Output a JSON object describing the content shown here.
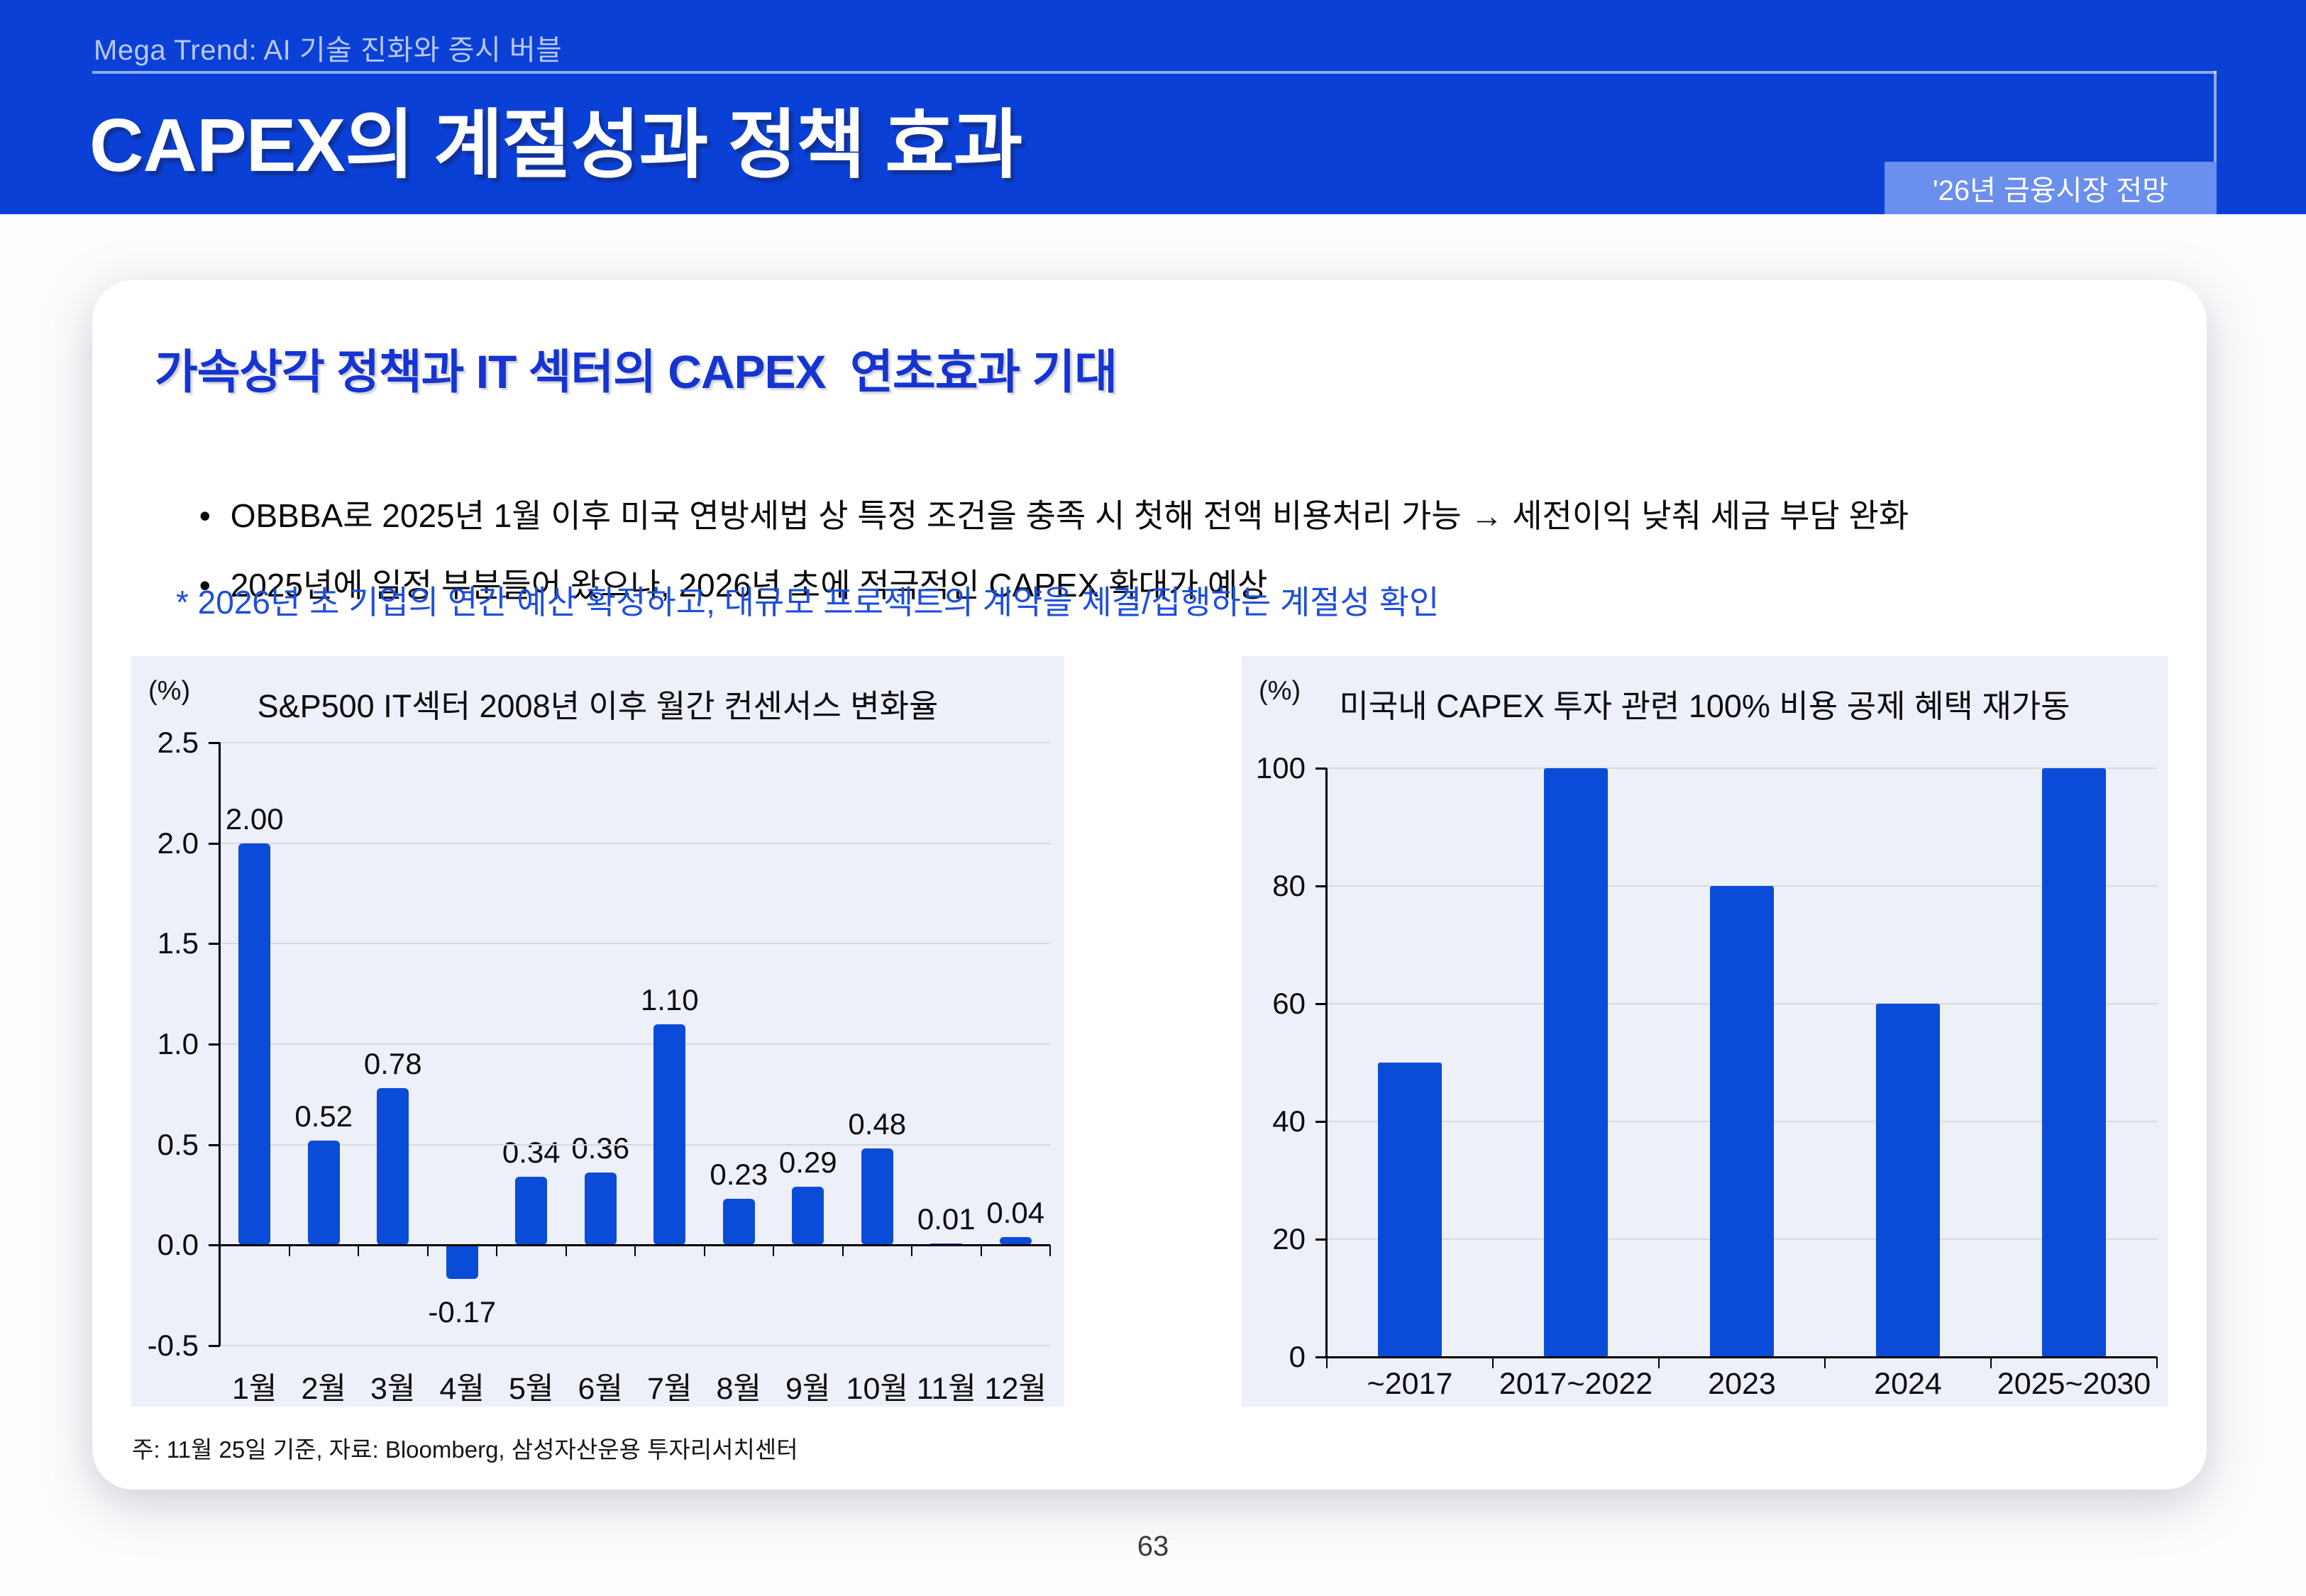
{
  "slide": {
    "eyebrow": "Mega Trend: AI 기술 진화와 증시 버블",
    "title": "CAPEX의 계절성과 정책 효과",
    "badge": "'26년 금융시장 전망",
    "page_number": "63"
  },
  "card": {
    "heading": "가속상각 정책과 IT 섹터의 CAPEX  연초효과 기대",
    "bullets": [
      {
        "marker": "•",
        "text": "OBBBA로 2025년 1월 이후 미국 연방세법 상 특정 조건을 충족 시 첫해 전액 비용처리 가능 → 세전이익 낮춰 세금 부담 완화"
      },
      {
        "marker": "•",
        "text": "2025년에 일정 부분들어 왔으나, 2026년 초에 적극적인 CAPEX 확대가 예상"
      }
    ],
    "subnote": "* 2026년 초 기업의 연간 예산 확정하고, 대규모 프로젝트의 계약을 체결/집행하는 계절성 확인",
    "footnote": "주: 11월 25일 기준, 자료: Bloomberg, 삼성자산운용 투자리서치센터"
  },
  "colors": {
    "header_blue": "#0a40d6",
    "badge_blue": "#6b8fee",
    "heading_blue": "#1634d0",
    "subnote_blue": "#1d4edc",
    "bar_blue": "#0a4cd8",
    "panel_background": "#edeff9",
    "gridline_gray": "#d9d9d9"
  },
  "chart_data": [
    {
      "type": "bar",
      "title": "S&P500 IT섹터 2008년 이후 월간 컨센서스 변화율",
      "unit": "(%)",
      "categories": [
        "1월",
        "2월",
        "3월",
        "4월",
        "5월",
        "6월",
        "7월",
        "8월",
        "9월",
        "10월",
        "11월",
        "12월"
      ],
      "values": [
        2.0,
        0.52,
        0.78,
        -0.17,
        0.34,
        0.36,
        1.1,
        0.23,
        0.29,
        0.48,
        0.01,
        0.04
      ],
      "value_labels": [
        "2.00",
        "0.52",
        "0.78",
        "-0.17",
        "0.34",
        "0.36",
        "1.10",
        "0.23",
        "0.29",
        "0.48",
        "0.01",
        "0.04"
      ],
      "xlabel": "",
      "ylabel": "(%)",
      "ylim": [
        -0.5,
        2.5
      ],
      "yticks": [
        2.5,
        2.0,
        1.5,
        1.0,
        0.5,
        0.0,
        -0.5
      ],
      "ytick_labels": [
        "2.5",
        "2.0",
        "1.5",
        "1.0",
        "0.5",
        "0.0",
        "-0.5"
      ],
      "grid": true,
      "legend": false
    },
    {
      "type": "bar",
      "title": "미국내 CAPEX 투자 관련 100% 비용 공제 혜택 재가동",
      "unit": "(%)",
      "categories": [
        "~2017",
        "2017~2022",
        "2023",
        "2024",
        "2025~2030"
      ],
      "values": [
        50,
        100,
        80,
        60,
        100
      ],
      "xlabel": "",
      "ylabel": "(%)",
      "ylim": [
        0,
        100
      ],
      "yticks": [
        100,
        80,
        60,
        40,
        20,
        0
      ],
      "ytick_labels": [
        "100",
        "80",
        "60",
        "40",
        "20",
        "0"
      ],
      "grid": true,
      "legend": false
    }
  ]
}
